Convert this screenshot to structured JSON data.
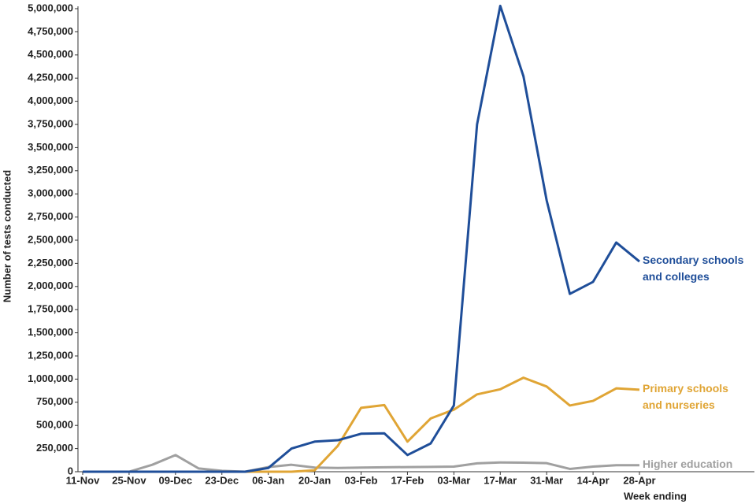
{
  "chart_data": {
    "type": "line",
    "y_label": "Number of tests conducted",
    "x_label": "Week ending",
    "categories": [
      "11-Nov",
      null,
      "25-Nov",
      null,
      "09-Dec",
      null,
      "23-Dec",
      null,
      "06-Jan",
      null,
      "20-Jan",
      null,
      "03-Feb",
      null,
      "17-Feb",
      null,
      "03-Mar",
      null,
      "17-Mar",
      null,
      "31-Mar",
      null,
      "14-Apr",
      null,
      "28-Apr"
    ],
    "series": [
      {
        "name": "Secondary schools and colleges",
        "color": "#1f4e99",
        "values": [
          0,
          0,
          0,
          0,
          0,
          0,
          0,
          0,
          40000,
          250000,
          325000,
          340000,
          410000,
          415000,
          180000,
          305000,
          715000,
          3750000,
          5030000,
          4270000,
          2930000,
          1920000,
          2050000,
          2475000,
          2270000
        ]
      },
      {
        "name": "Primary schools and nurseries",
        "color": "#e0a535",
        "values": [
          0,
          0,
          0,
          0,
          0,
          0,
          0,
          0,
          0,
          0,
          15000,
          280000,
          690000,
          720000,
          325000,
          575000,
          670000,
          835000,
          890000,
          1015000,
          920000,
          715000,
          765000,
          900000,
          885000
        ]
      },
      {
        "name": "Higher education",
        "color": "#a0a0a0",
        "values": [
          0,
          0,
          0,
          75000,
          180000,
          35000,
          10000,
          0,
          50000,
          75000,
          45000,
          40000,
          45000,
          48000,
          50000,
          52000,
          55000,
          90000,
          100000,
          98000,
          92000,
          30000,
          55000,
          70000,
          70000
        ]
      }
    ],
    "ylim": [
      0,
      5000000
    ],
    "yticks": [
      {
        "value": 0,
        "label": "0"
      },
      {
        "value": 250000,
        "label": "250,000"
      },
      {
        "value": 500000,
        "label": "500,000"
      },
      {
        "value": 750000,
        "label": "750,000"
      },
      {
        "value": 1000000,
        "label": "1,000,000"
      },
      {
        "value": 1250000,
        "label": "1,250,000"
      },
      {
        "value": 1500000,
        "label": "1,500,000"
      },
      {
        "value": 1750000,
        "label": "1,750,000"
      },
      {
        "value": 2000000,
        "label": "2,000,000"
      },
      {
        "value": 2250000,
        "label": "2,250,000"
      },
      {
        "value": 2500000,
        "label": "2,500,000"
      },
      {
        "value": 2750000,
        "label": "2,750,000"
      },
      {
        "value": 3000000,
        "label": "3,000,000"
      },
      {
        "value": 3250000,
        "label": "3,250,000"
      },
      {
        "value": 3500000,
        "label": "3,500,000"
      },
      {
        "value": 3750000,
        "label": "3,750,000"
      },
      {
        "value": 4000000,
        "label": "4,000,000"
      },
      {
        "value": 4250000,
        "label": "4,250,000"
      },
      {
        "value": 4500000,
        "label": "4,500,000"
      },
      {
        "value": 4750000,
        "label": "4,750,000"
      },
      {
        "value": 5000000,
        "label": "5,000,000"
      }
    ],
    "grid": false
  }
}
